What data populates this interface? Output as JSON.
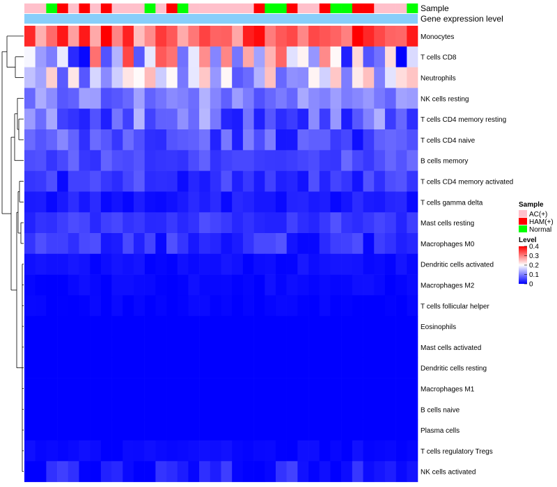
{
  "chart_data": {
    "type": "heatmap",
    "title": "",
    "annotations": {
      "sample_label": "Sample",
      "expression_label": "Gene expression level",
      "sample_groups": [
        "AC(+)",
        "AC(+)",
        "Normal",
        "HAM(+)",
        "AC(+)",
        "HAM(+)",
        "AC(+)",
        "HAM(+)",
        "AC(+)",
        "AC(+)",
        "AC(+)",
        "Normal",
        "AC(+)",
        "HAM(+)",
        "Normal",
        "AC(+)",
        "AC(+)",
        "AC(+)",
        "AC(+)",
        "AC(+)",
        "AC(+)",
        "HAM(+)",
        "Normal",
        "Normal",
        "HAM(+)",
        "AC(+)",
        "AC(+)",
        "HAM(+)",
        "Normal",
        "Normal",
        "HAM(+)",
        "HAM(+)",
        "AC(+)",
        "AC(+)",
        "AC(+)",
        "Normal"
      ]
    },
    "rows": [
      "Monocytes",
      "T cells CD8",
      "Neutrophils",
      "NK cells resting",
      "T cells CD4 memory resting",
      "T cells CD4 naive",
      "B cells memory",
      "T cells CD4 memory activated",
      "T cells gamma delta",
      "Mast cells resting",
      "Macrophages M0",
      "Dendritic cells activated",
      "Macrophages M2",
      "T cells follicular helper",
      "Eosinophils",
      "Mast cells activated",
      "Dendritic cells resting",
      "Macrophages M1",
      "B cells naive",
      "Plasma cells",
      "T cells regulatory  Tregs",
      "NK cells activated"
    ],
    "row_means": [
      0.33,
      0.17,
      0.16,
      0.1,
      0.08,
      0.06,
      0.06,
      0.04,
      0.02,
      0.045,
      0.035,
      0.01,
      0.006,
      0.002,
      0.0,
      0.0,
      0.0,
      0.0,
      0.0,
      0.0,
      0.005,
      0.02
    ],
    "row_spread": [
      0.05,
      0.11,
      0.06,
      0.025,
      0.04,
      0.03,
      0.015,
      0.02,
      0.01,
      0.012,
      0.02,
      0.006,
      0.005,
      0.004,
      0.0,
      0.0,
      0.0,
      0.0,
      0.0,
      0.0,
      0.006,
      0.02
    ],
    "n_columns": 36,
    "color_scale": {
      "min": 0,
      "max": 0.4,
      "low": "#0000ff",
      "mid": "#ffffff",
      "high": "#ff0000"
    },
    "legend": {
      "sample_title": "Sample",
      "sample_entries": [
        {
          "label": "AC(+)",
          "color": "#ffc0cb"
        },
        {
          "label": "HAM(+)",
          "color": "#ff0000"
        },
        {
          "label": "Normal",
          "color": "#00ff00"
        }
      ],
      "level_title": "Level",
      "level_ticks": [
        "0.4",
        "0.3",
        "0.2",
        "0.1",
        "0"
      ],
      "level_tick_values": [
        0.4,
        0.3,
        0.2,
        0.1,
        0
      ]
    }
  }
}
